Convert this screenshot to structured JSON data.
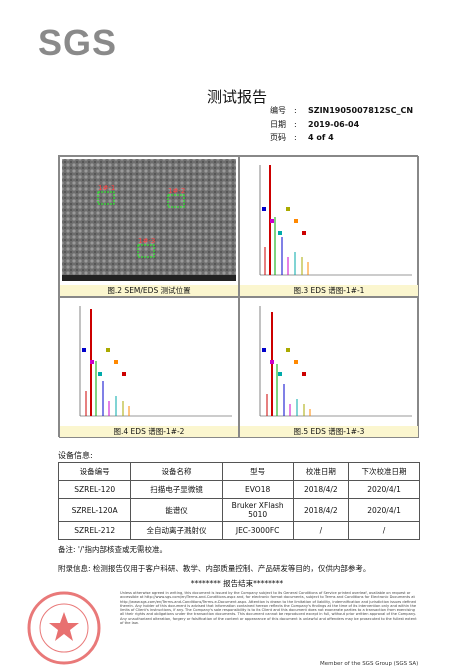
{
  "header": {
    "logo": "SGS",
    "title": "测试报告",
    "separator": ":",
    "meta": [
      {
        "label": "编号",
        "value": "SZIN1905007812SC_CN"
      },
      {
        "label": "日期",
        "value": "2019-06-04"
      },
      {
        "label": "页码",
        "value": "4 of 4"
      }
    ]
  },
  "figures": [
    {
      "caption": "图.2 SEM/EDS 测试位置",
      "markers": [
        "1#-1",
        "1#-2",
        "1#-3"
      ]
    },
    {
      "caption": "图.3 EDS 谱图-1#-1"
    },
    {
      "caption": "图.4 EDS 谱图-1#-2"
    },
    {
      "caption": "图.5 EDS 谱图-1#-3"
    }
  ],
  "equipment": {
    "heading": "设备信息:",
    "columns": [
      "设备编号",
      "设备名称",
      "型号",
      "校准日期",
      "下次校准日期"
    ],
    "rows": [
      [
        "SZREL-120",
        "扫描电子显微镜",
        "EVO18",
        "2018/4/2",
        "2020/4/1"
      ],
      [
        "SZREL-120A",
        "能谱仪",
        "Bruker XFlash 5010",
        "2018/4/2",
        "2020/4/1"
      ],
      [
        "SZREL-212",
        "全自动离子溅射仪",
        "JEC-3000FC",
        "/",
        "/"
      ]
    ]
  },
  "note": "备注: '/'指内部核查或无需校准。",
  "appendix": "附录信息: 检测报告仅用于客户科研、教学、内部质量控制、产品研发等目的，仅供内部参考。",
  "end": "******** 报告结束********",
  "footer": {
    "disclaimer": "Unless otherwise agreed in writing, this document is issued by the Company subject to its General Conditions of Service printed overleaf, available on request or accessible at http://www.sgs.com/en/Terms-and-Conditions.aspx and, for electronic format documents, subject to Terms and Conditions for Electronic Documents at http://www.sgs.com/en/Terms-and-Conditions/Terms-e-Document.aspx. Attention is drawn to the limitation of liability, indemnification and jurisdiction issues defined therein. Any holder of this document is advised that information contained hereon reflects the Company's findings at the time of its intervention only and within the limits of Client's instructions, if any. The Company's sole responsibility is to its Client and this document does not exonerate parties to a transaction from exercising all their rights and obligations under the transaction documents. This document cannot be reproduced except in full, without prior written approval of the Company. Any unauthorized alteration, forgery or falsification of the content or appearance of this document is unlawful and offenders may be prosecuted to the fullest extent of the law.",
    "member": "Member of the SGS Group (SGS SA)"
  }
}
